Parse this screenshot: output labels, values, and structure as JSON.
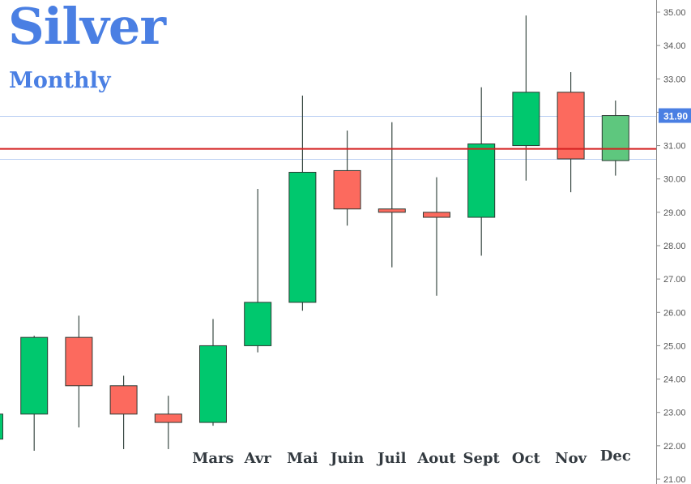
{
  "chart_data": {
    "type": "candlestick",
    "title": "Silver",
    "subtitle": "Monthly",
    "ylim": [
      21.0,
      35.3
    ],
    "yticks": [
      "21.00",
      "22.00",
      "23.00",
      "24.00",
      "25.00",
      "26.00",
      "27.00",
      "28.00",
      "29.00",
      "30.00",
      "31.00",
      "32.00",
      "33.00",
      "34.00",
      "35.00"
    ],
    "ytick_values": [
      21,
      22,
      23,
      24,
      25,
      26,
      27,
      28,
      29,
      30,
      31,
      32,
      33,
      34,
      35
    ],
    "candles": [
      {
        "label": "",
        "open": 22.2,
        "high": 22.95,
        "low": 22.2,
        "close": 22.95,
        "dir": "up"
      },
      {
        "label": "",
        "open": 22.95,
        "high": 25.3,
        "low": 21.85,
        "close": 25.25,
        "dir": "up"
      },
      {
        "label": "",
        "open": 25.25,
        "high": 25.9,
        "low": 22.55,
        "close": 23.8,
        "dir": "down"
      },
      {
        "label": "",
        "open": 23.8,
        "high": 24.1,
        "low": 21.9,
        "close": 22.95,
        "dir": "down"
      },
      {
        "label": "",
        "open": 22.95,
        "high": 23.5,
        "low": 21.9,
        "close": 22.7,
        "dir": "down"
      },
      {
        "label": "Mars",
        "open": 22.7,
        "high": 25.8,
        "low": 22.6,
        "close": 25.0,
        "dir": "up"
      },
      {
        "label": "Avr",
        "open": 25.0,
        "high": 29.7,
        "low": 24.8,
        "close": 26.3,
        "dir": "up"
      },
      {
        "label": "Mai",
        "open": 26.3,
        "high": 32.5,
        "low": 26.05,
        "close": 30.2,
        "dir": "up"
      },
      {
        "label": "Juin",
        "open": 30.25,
        "high": 31.45,
        "low": 28.6,
        "close": 29.1,
        "dir": "down"
      },
      {
        "label": "Juil",
        "open": 29.1,
        "high": 31.7,
        "low": 27.35,
        "close": 29.0,
        "dir": "down"
      },
      {
        "label": "Aout",
        "open": 29.0,
        "high": 30.05,
        "low": 26.5,
        "close": 28.85,
        "dir": "down"
      },
      {
        "label": "Sept",
        "open": 28.85,
        "high": 32.75,
        "low": 27.7,
        "close": 31.05,
        "dir": "up"
      },
      {
        "label": "Oct",
        "open": 31.0,
        "high": 34.9,
        "low": 29.95,
        "close": 32.6,
        "dir": "up"
      },
      {
        "label": "Nov",
        "open": 32.6,
        "high": 33.2,
        "low": 29.6,
        "close": 30.6,
        "dir": "down"
      },
      {
        "label": "Dec",
        "open": 30.55,
        "high": 32.35,
        "low": 30.1,
        "close": 31.9,
        "dir": "up",
        "light": true
      }
    ],
    "current_price": {
      "label": "31.90",
      "value": 31.9
    },
    "reference_lines": [
      {
        "value": 30.9,
        "color": "#d42020",
        "style": "solid"
      },
      {
        "value": 30.6,
        "color": "#b9cef2",
        "style": "thin"
      },
      {
        "value": 31.9,
        "color": "#b9cef2",
        "style": "thin"
      }
    ],
    "grid": false,
    "y_axis_side": "right"
  },
  "colors": {
    "up": "#00c86e",
    "up_light": "#5ec77e",
    "down": "#fc6a5e",
    "wick": "#3a4a44",
    "axis_text": "#555555",
    "price_badge": "#4a7fe3",
    "title": "#4a7fe3"
  }
}
